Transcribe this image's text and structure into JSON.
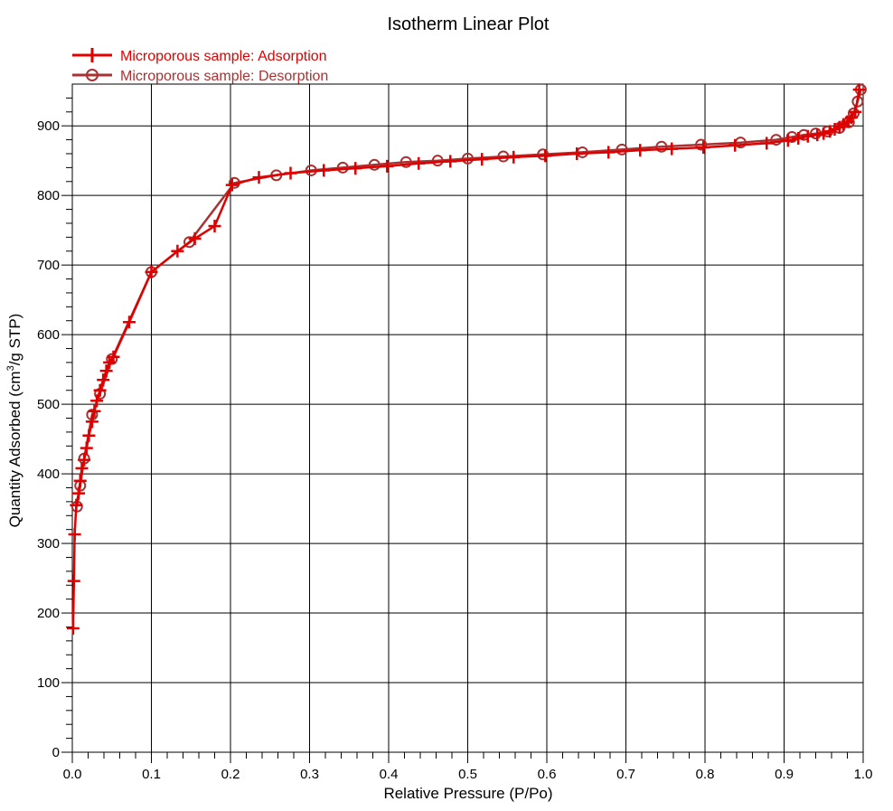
{
  "chart_data": {
    "type": "line",
    "title": "Isotherm Linear Plot",
    "xlabel": "Relative Pressure (P/Po)",
    "ylabel_prefix": "Quantity Adsorbed (cm",
    "ylabel_sup": "3",
    "ylabel_suffix": "/g STP)",
    "xlim": [
      0.0,
      1.0
    ],
    "ylim": [
      0,
      960
    ],
    "xticks": [
      0.0,
      0.1,
      0.2,
      0.3,
      0.4,
      0.5,
      0.6,
      0.7,
      0.8,
      0.9,
      1.0
    ],
    "xtick_labels": [
      "0.0",
      "0.1",
      "0.2",
      "0.3",
      "0.4",
      "0.5",
      "0.6",
      "0.7",
      "0.8",
      "0.9",
      "1.0"
    ],
    "yticks": [
      0,
      100,
      200,
      300,
      400,
      500,
      600,
      700,
      800,
      900
    ],
    "ytick_labels": [
      "0",
      "100",
      "200",
      "300",
      "400",
      "500",
      "600",
      "700",
      "800",
      "900"
    ],
    "grid": true,
    "legend_position": "top-left",
    "series": [
      {
        "name": "Microporous sample: Adsorption",
        "color": "#e00000",
        "marker": "plus",
        "x": [
          0.001,
          0.002,
          0.003,
          0.005,
          0.008,
          0.01,
          0.012,
          0.015,
          0.018,
          0.021,
          0.025,
          0.028,
          0.031,
          0.035,
          0.039,
          0.043,
          0.047,
          0.052,
          0.072,
          0.1,
          0.133,
          0.155,
          0.18,
          0.202,
          0.236,
          0.276,
          0.318,
          0.358,
          0.398,
          0.438,
          0.478,
          0.518,
          0.558,
          0.598,
          0.638,
          0.678,
          0.718,
          0.758,
          0.798,
          0.838,
          0.878,
          0.905,
          0.918,
          0.93,
          0.942,
          0.95,
          0.958,
          0.964,
          0.97,
          0.975,
          0.98,
          0.985,
          0.99,
          0.995
        ],
        "y": [
          178,
          246,
          313,
          355,
          372,
          390,
          408,
          420,
          437,
          455,
          475,
          490,
          505,
          520,
          535,
          548,
          560,
          568,
          618,
          690,
          720,
          738,
          756,
          815,
          826,
          832,
          836,
          839,
          842,
          846,
          849,
          852,
          855,
          857,
          860,
          862,
          865,
          867,
          869,
          872,
          875,
          879,
          882,
          885,
          887,
          889,
          892,
          895,
          898,
          902,
          906,
          912,
          920,
          952
        ]
      },
      {
        "name": "Microporous sample: Desorption",
        "color": "#a83232",
        "marker": "circle",
        "x": [
          0.997,
          0.993,
          0.988,
          0.982,
          0.97,
          0.955,
          0.94,
          0.925,
          0.91,
          0.89,
          0.845,
          0.795,
          0.745,
          0.695,
          0.645,
          0.595,
          0.545,
          0.5,
          0.462,
          0.422,
          0.382,
          0.342,
          0.302,
          0.258,
          0.205,
          0.148,
          0.1,
          0.05,
          0.035,
          0.025,
          0.015,
          0.01,
          0.006
        ],
        "y": [
          952,
          935,
          918,
          905,
          897,
          892,
          889,
          887,
          884,
          880,
          876,
          873,
          870,
          866,
          862,
          859,
          856,
          853,
          850,
          848,
          844,
          840,
          836,
          829,
          818,
          733,
          690,
          565,
          515,
          485,
          422,
          383,
          353
        ]
      }
    ]
  }
}
